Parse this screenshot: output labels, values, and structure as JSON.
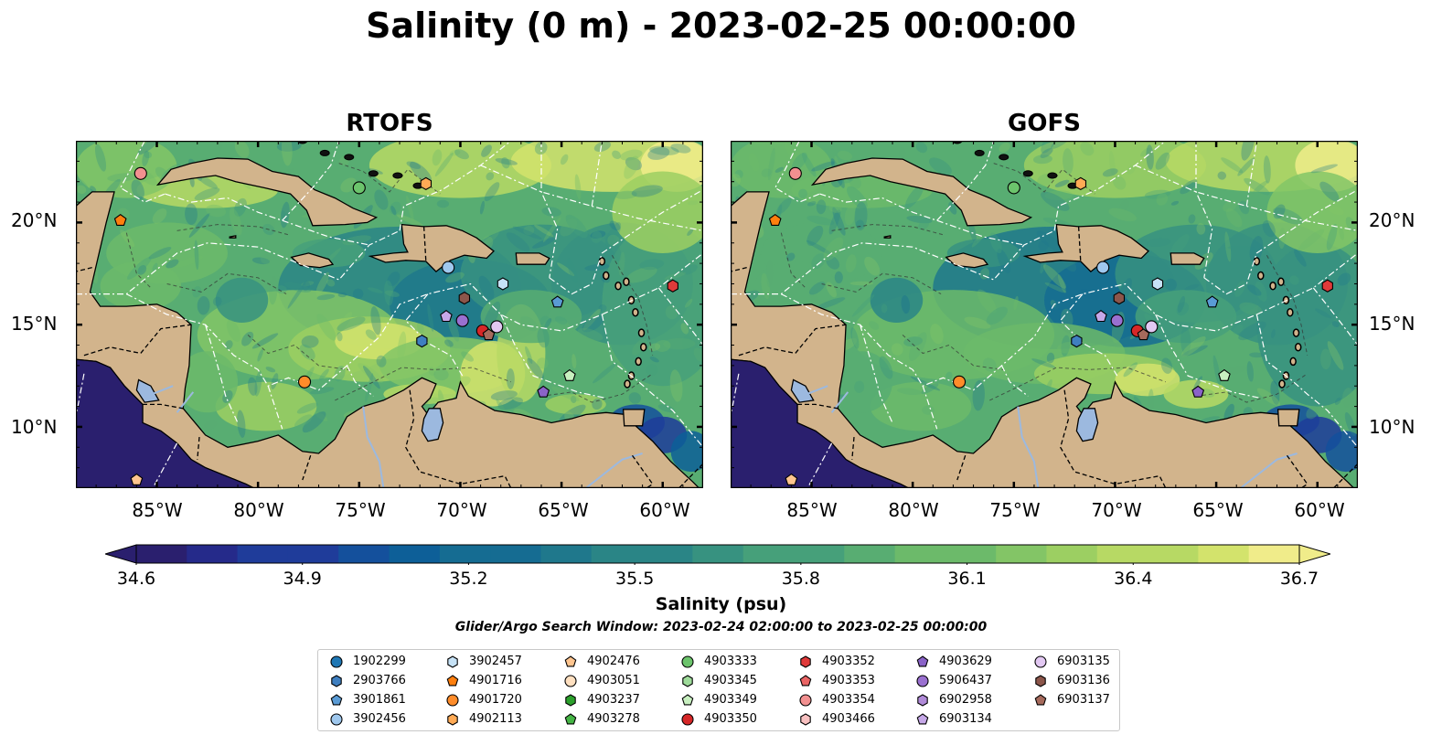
{
  "title": "Salinity (0 m) - 2023-02-25 00:00:00",
  "panels": [
    {
      "title": "RTOFS"
    },
    {
      "title": "GOFS"
    }
  ],
  "lat_labels": [
    "20°N",
    "15°N",
    "10°N"
  ],
  "lon_labels": [
    "85°W",
    "80°W",
    "75°W",
    "70°W",
    "65°W",
    "60°W"
  ],
  "map_extent": {
    "lon": [
      -89,
      -58
    ],
    "lat": [
      7,
      24
    ]
  },
  "colorbar": {
    "colormap": "summer-like (navy → teal → green → yellow)",
    "min": 34.6,
    "max": 36.7,
    "ticks": [
      "34.6",
      "34.9",
      "35.2",
      "35.5",
      "35.8",
      "36.1",
      "36.4",
      "36.7"
    ],
    "label": "Salinity (psu)",
    "extend": "both"
  },
  "search_window": "Glider/Argo Search Window: 2023-02-24 02:00:00 to 2023-02-25 00:00:00",
  "legend": [
    {
      "id": "1902299",
      "marker": "circle",
      "color": "#1f77b4"
    },
    {
      "id": "2903766",
      "marker": "hexagon",
      "color": "#3f7fc0"
    },
    {
      "id": "3901861",
      "marker": "pentagon",
      "color": "#5a9bd5"
    },
    {
      "id": "3902456",
      "marker": "circle",
      "color": "#9fc8ee"
    },
    {
      "id": "3902457",
      "marker": "hexagon",
      "color": "#c6e2f6"
    },
    {
      "id": "4901716",
      "marker": "pentagon",
      "color": "#ff7f0e"
    },
    {
      "id": "4901720",
      "marker": "circle",
      "color": "#ff8c2a"
    },
    {
      "id": "4902113",
      "marker": "hexagon",
      "color": "#ffaa55"
    },
    {
      "id": "4902476",
      "marker": "pentagon",
      "color": "#ffc58f"
    },
    {
      "id": "4903051",
      "marker": "circle",
      "color": "#ffe0c0"
    },
    {
      "id": "4903237",
      "marker": "hexagon",
      "color": "#2ca02c"
    },
    {
      "id": "4903278",
      "marker": "pentagon",
      "color": "#45b545"
    },
    {
      "id": "4903333",
      "marker": "circle",
      "color": "#6cc46c"
    },
    {
      "id": "4903345",
      "marker": "hexagon",
      "color": "#9edb9a"
    },
    {
      "id": "4903349",
      "marker": "pentagon",
      "color": "#c8f0c0"
    },
    {
      "id": "4903350",
      "marker": "circle",
      "color": "#d62728"
    },
    {
      "id": "4903352",
      "marker": "hexagon",
      "color": "#e03a3a"
    },
    {
      "id": "4903353",
      "marker": "pentagon",
      "color": "#ea6464"
    },
    {
      "id": "4903354",
      "marker": "circle",
      "color": "#f29090"
    },
    {
      "id": "4903466",
      "marker": "hexagon",
      "color": "#f8c0c0"
    },
    {
      "id": "4903629",
      "marker": "pentagon",
      "color": "#8a63c8"
    },
    {
      "id": "5906437",
      "marker": "circle",
      "color": "#9a70d0"
    },
    {
      "id": "6902958",
      "marker": "hexagon",
      "color": "#b08ad8"
    },
    {
      "id": "6903134",
      "marker": "pentagon",
      "color": "#c6a8e8"
    },
    {
      "id": "6903135",
      "marker": "circle",
      "color": "#e2c8f2"
    },
    {
      "id": "6903136",
      "marker": "hexagon",
      "color": "#8c564b"
    },
    {
      "id": "6903137",
      "marker": "pentagon",
      "color": "#a66a5c"
    }
  ],
  "floats": [
    {
      "id": "4903354",
      "lon": -85.8,
      "lat": 22.4
    },
    {
      "id": "4901716",
      "lon": -86.8,
      "lat": 20.1
    },
    {
      "id": "4903333",
      "lon": -75.0,
      "lat": 21.7
    },
    {
      "id": "4902113",
      "lon": -71.7,
      "lat": 21.9
    },
    {
      "id": "3902456",
      "lon": -70.6,
      "lat": 17.8
    },
    {
      "id": "3902457",
      "lon": -67.9,
      "lat": 17.0
    },
    {
      "id": "3901861",
      "lon": -65.2,
      "lat": 16.1
    },
    {
      "id": "4903352",
      "lon": -59.5,
      "lat": 16.9
    },
    {
      "id": "6903136",
      "lon": -69.8,
      "lat": 16.3
    },
    {
      "id": "6903134",
      "lon": -70.7,
      "lat": 15.4
    },
    {
      "id": "5906437",
      "lon": -69.9,
      "lat": 15.2
    },
    {
      "id": "4903350",
      "lon": -68.9,
      "lat": 14.7
    },
    {
      "id": "6903137",
      "lon": -68.6,
      "lat": 14.5
    },
    {
      "id": "6903135",
      "lon": -68.2,
      "lat": 14.9
    },
    {
      "id": "2903766",
      "lon": -71.9,
      "lat": 14.2
    },
    {
      "id": "4901720",
      "lon": -77.7,
      "lat": 12.2
    },
    {
      "id": "4903349",
      "lon": -64.6,
      "lat": 12.5
    },
    {
      "id": "4903629",
      "lon": -65.9,
      "lat": 11.7
    },
    {
      "id": "4902476",
      "lon": -86.0,
      "lat": 7.4
    }
  ]
}
